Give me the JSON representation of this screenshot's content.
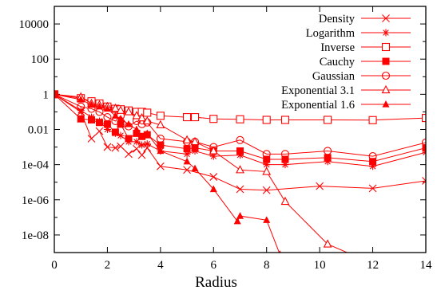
{
  "chart_data": {
    "type": "line",
    "xlabel": "Radius",
    "ylabel": "",
    "xlim": [
      0,
      14
    ],
    "ylim": [
      1e-09,
      100000
    ],
    "y_scale": "log",
    "grid": false,
    "legend_position": "top-right",
    "line_color": "#ff0000",
    "x_ticks": [
      "0",
      "2",
      "4",
      "6",
      "8",
      "10",
      "12",
      "14"
    ],
    "y_ticks": [
      {
        "value": 10000,
        "label": "10000"
      },
      {
        "value": 100,
        "label": "100"
      },
      {
        "value": 1,
        "label": "1"
      },
      {
        "value": 0.01,
        "label": "0.01"
      },
      {
        "value": 0.0001,
        "label": "1e-04"
      },
      {
        "value": 1e-06,
        "label": "1e-06"
      },
      {
        "value": 1e-08,
        "label": "1e-08"
      }
    ],
    "series": [
      {
        "name": "Density",
        "marker": "x",
        "x": [
          0,
          1,
          1.4,
          1.7,
          2,
          2.3,
          2.5,
          2.8,
          3.1,
          3.3,
          3.5,
          4,
          5,
          6,
          7,
          8,
          10,
          12,
          14
        ],
        "y": [
          1,
          0.1,
          0.003,
          0.008,
          0.001,
          0.0009,
          0.0011,
          0.0004,
          0.0008,
          0.00035,
          0.0009,
          8e-05,
          5e-05,
          2e-05,
          4e-06,
          3.5e-06,
          6e-06,
          4.5e-06,
          1.2e-05
        ]
      },
      {
        "name": "Logarithm",
        "marker": "star",
        "x": [
          0,
          1,
          1.4,
          1.7,
          2,
          2.3,
          2.5,
          2.8,
          3.1,
          3.3,
          3.5,
          4,
          5,
          5.3,
          6,
          7,
          8,
          8.7,
          10.3,
          12,
          14
        ],
        "y": [
          1,
          0.12,
          0.05,
          0.03,
          0.01,
          0.006,
          0.0045,
          0.002,
          0.002,
          0.0013,
          0.0015,
          0.0006,
          0.0004,
          0.0006,
          0.0003,
          0.00035,
          0.0001,
          0.0001,
          0.00015,
          8e-05,
          0.0005
        ]
      },
      {
        "name": "Inverse",
        "marker": "square-open",
        "x": [
          0,
          1,
          1.4,
          1.7,
          2,
          2.3,
          2.5,
          2.8,
          3.1,
          3.3,
          3.5,
          4,
          5,
          5.3,
          6,
          7,
          8,
          8.7,
          10.3,
          12,
          14
        ],
        "y": [
          1,
          0.6,
          0.4,
          0.3,
          0.2,
          0.15,
          0.14,
          0.12,
          0.1,
          0.1,
          0.09,
          0.06,
          0.05,
          0.05,
          0.04,
          0.038,
          0.035,
          0.035,
          0.035,
          0.034,
          0.045
        ]
      },
      {
        "name": "Cauchy",
        "marker": "square-filled",
        "x": [
          0,
          1,
          1.4,
          1.7,
          2,
          2.3,
          2.5,
          2.8,
          3.1,
          3.3,
          3.5,
          4,
          5,
          5.3,
          6,
          7,
          8,
          8.7,
          10.3,
          12,
          14
        ],
        "y": [
          1,
          0.04,
          0.035,
          0.025,
          0.02,
          0.007,
          0.02,
          0.003,
          0.006,
          0.004,
          0.005,
          0.0013,
          0.0008,
          0.0009,
          0.0006,
          0.0006,
          0.0002,
          0.0002,
          0.00025,
          0.00015,
          0.0009
        ]
      },
      {
        "name": "Gaussian",
        "marker": "circle-open",
        "x": [
          0,
          1,
          1.4,
          1.7,
          2,
          2.3,
          2.5,
          2.8,
          3.1,
          3.3,
          3.5,
          4,
          5,
          5.3,
          6,
          7,
          8,
          8.7,
          10.3,
          12,
          14
        ],
        "y": [
          1,
          0.2,
          0.15,
          0.1,
          0.05,
          0.03,
          0.06,
          0.015,
          0.03,
          0.02,
          0.025,
          0.003,
          0.002,
          0.002,
          0.001,
          0.0025,
          0.0004,
          0.0004,
          0.0006,
          0.0003,
          0.0018
        ]
      },
      {
        "name": "Exponential 3.1",
        "marker": "triangle-open",
        "x": [
          0,
          1,
          1.4,
          1.7,
          2,
          2.3,
          2.5,
          2.8,
          3.1,
          3.3,
          3.5,
          4,
          5,
          5.3,
          6,
          7,
          8,
          8.7,
          10.3,
          11.5
        ],
        "y": [
          1,
          0.7,
          0.3,
          0.25,
          0.2,
          0.16,
          0.12,
          0.1,
          0.06,
          0.045,
          0.03,
          0.018,
          0.0025,
          0.002,
          0.0006,
          5e-05,
          4e-05,
          8e-07,
          3e-09,
          5e-10
        ]
      },
      {
        "name": "Exponential 1.6",
        "marker": "triangle-filled",
        "x": [
          0,
          1,
          1.4,
          1.7,
          2,
          2.3,
          2.5,
          2.8,
          3.1,
          3.3,
          3.5,
          4,
          5,
          5.3,
          6,
          6.9,
          7,
          8,
          8.5
        ],
        "y": [
          1,
          0.5,
          0.25,
          0.2,
          0.15,
          0.06,
          0.04,
          0.02,
          0.01,
          0.004,
          0.006,
          0.0006,
          0.00015,
          6e-05,
          4e-06,
          6e-08,
          1.2e-07,
          7e-08,
          8e-10
        ]
      }
    ]
  }
}
